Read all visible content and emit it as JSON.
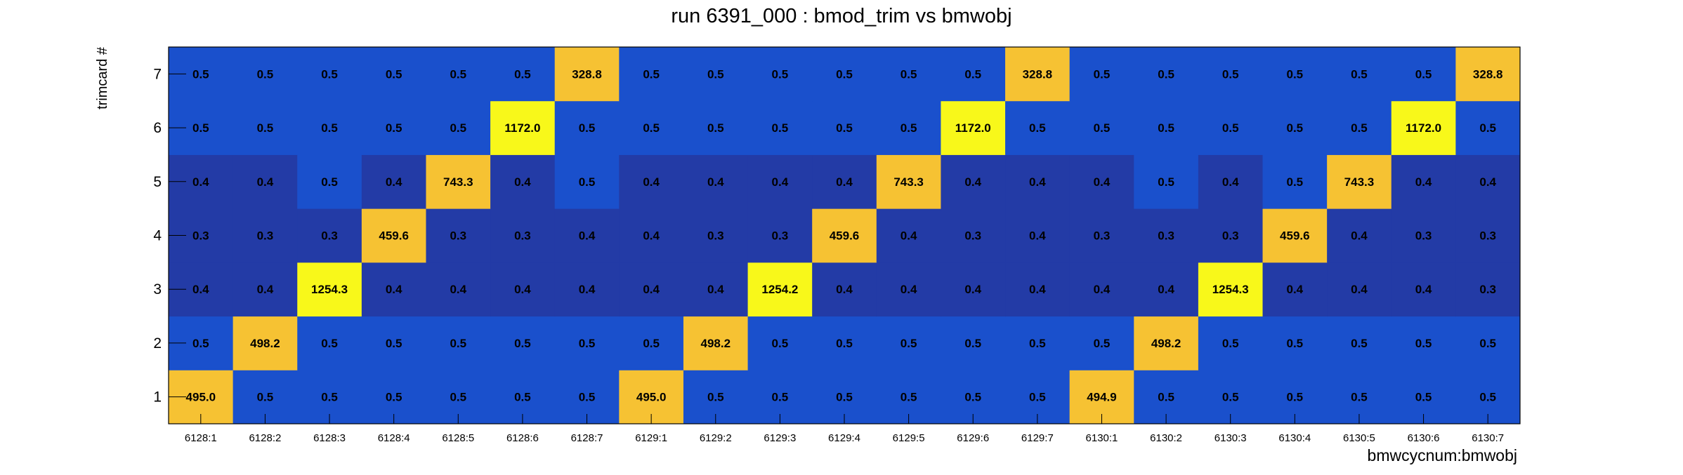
{
  "chart_data": {
    "type": "heatmap",
    "title": "run 6391_000 : bmod_trim vs bmwobj",
    "xlabel": "bmwcycnum:bmwobj",
    "ylabel": "trimcard #",
    "x_categories": [
      "6128:1",
      "6128:2",
      "6128:3",
      "6128:4",
      "6128:5",
      "6128:6",
      "6128:7",
      "6129:1",
      "6129:2",
      "6129:3",
      "6129:4",
      "6129:5",
      "6129:6",
      "6129:7",
      "6130:1",
      "6130:2",
      "6130:3",
      "6130:4",
      "6130:5",
      "6130:6",
      "6130:7"
    ],
    "y_categories": [
      "1",
      "2",
      "3",
      "4",
      "5",
      "6",
      "7"
    ],
    "rows": [
      {
        "y": "1",
        "values": [
          "495.0",
          "0.5",
          "0.5",
          "0.5",
          "0.5",
          "0.5",
          "0.5",
          "495.0",
          "0.5",
          "0.5",
          "0.5",
          "0.5",
          "0.5",
          "0.5",
          "494.9",
          "0.5",
          "0.5",
          "0.5",
          "0.5",
          "0.5",
          "0.5"
        ]
      },
      {
        "y": "2",
        "values": [
          "0.5",
          "498.2",
          "0.5",
          "0.5",
          "0.5",
          "0.5",
          "0.5",
          "0.5",
          "498.2",
          "0.5",
          "0.5",
          "0.5",
          "0.5",
          "0.5",
          "0.5",
          "498.2",
          "0.5",
          "0.5",
          "0.5",
          "0.5",
          "0.5"
        ]
      },
      {
        "y": "3",
        "values": [
          "0.4",
          "0.4",
          "1254.3",
          "0.4",
          "0.4",
          "0.4",
          "0.4",
          "0.4",
          "0.4",
          "1254.2",
          "0.4",
          "0.4",
          "0.4",
          "0.4",
          "0.4",
          "0.4",
          "1254.3",
          "0.4",
          "0.4",
          "0.4",
          "0.3"
        ]
      },
      {
        "y": "4",
        "values": [
          "0.3",
          "0.3",
          "0.3",
          "459.6",
          "0.3",
          "0.3",
          "0.4",
          "0.4",
          "0.3",
          "0.3",
          "459.6",
          "0.4",
          "0.3",
          "0.4",
          "0.3",
          "0.3",
          "0.3",
          "459.6",
          "0.4",
          "0.3",
          "0.3"
        ]
      },
      {
        "y": "5",
        "values": [
          "0.4",
          "0.4",
          "0.5",
          "0.4",
          "743.3",
          "0.4",
          "0.5",
          "0.4",
          "0.4",
          "0.4",
          "0.4",
          "743.3",
          "0.4",
          "0.4",
          "0.4",
          "0.5",
          "0.4",
          "0.5",
          "743.3",
          "0.4",
          "0.4"
        ]
      },
      {
        "y": "6",
        "values": [
          "0.5",
          "0.5",
          "0.5",
          "0.5",
          "0.5",
          "1172.0",
          "0.5",
          "0.5",
          "0.5",
          "0.5",
          "0.5",
          "0.5",
          "1172.0",
          "0.5",
          "0.5",
          "0.5",
          "0.5",
          "0.5",
          "0.5",
          "1172.0",
          "0.5"
        ]
      },
      {
        "y": "7",
        "values": [
          "0.5",
          "0.5",
          "0.5",
          "0.5",
          "0.5",
          "0.5",
          "328.8",
          "0.5",
          "0.5",
          "0.5",
          "0.5",
          "0.5",
          "0.5",
          "328.8",
          "0.5",
          "0.5",
          "0.5",
          "0.5",
          "0.5",
          "0.5",
          "328.8"
        ]
      }
    ],
    "colors": {
      "high": "#f8f81a",
      "mid_high": "#f6c233",
      "low_blue": "#1a50cc",
      "low_dark": "#233ba6"
    },
    "grid": false,
    "legend": "none"
  }
}
